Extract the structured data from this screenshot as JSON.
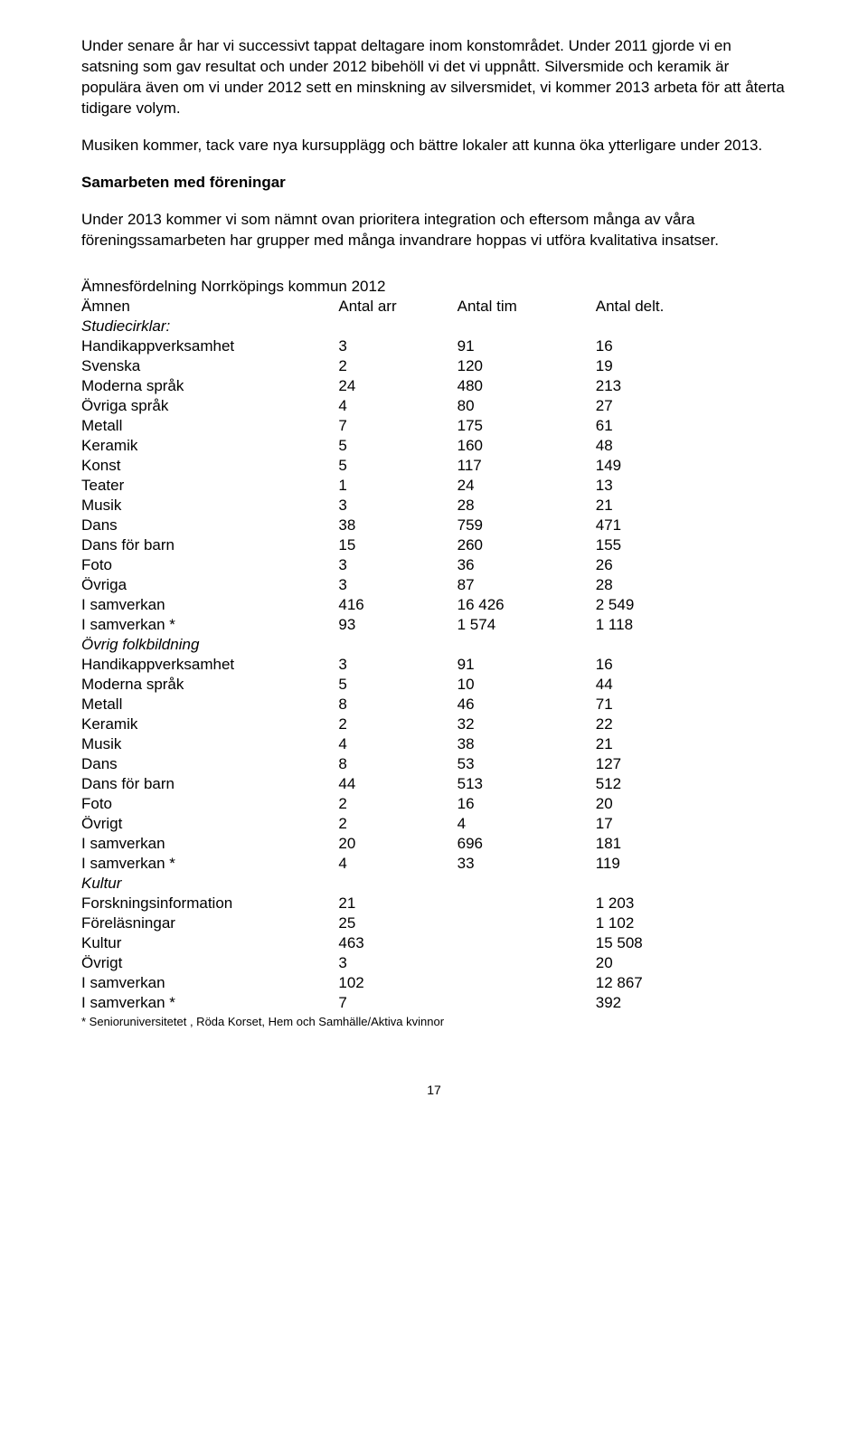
{
  "paragraphs": {
    "p1": "Under senare år har vi successivt tappat deltagare inom konstområdet. Under 2011 gjorde vi en satsning som gav resultat och under 2012 bibehöll vi det vi uppnått. Silversmide och keramik är populära även om vi under 2012 sett en minskning av silversmidet, vi kommer 2013 arbeta för att återta tidigare volym.",
    "p2": "Musiken kommer, tack vare nya kursupplägg och bättre lokaler att kunna öka ytterligare under 2013.",
    "h1": "Samarbeten med föreningar",
    "p3": "Under 2013 kommer vi som nämnt ovan prioritera integration och eftersom många av våra föreningssamarbeten har grupper med många invandrare hoppas vi utföra kvalitativa insatser."
  },
  "table": {
    "title": "Ämnesfördelning  Norrköpings kommun 2012",
    "header": {
      "c0": "Ämnen",
      "c1": "Antal arr",
      "c2": "Antal tim",
      "c3": "Antal delt."
    },
    "rows": [
      {
        "label": "Studiecirklar:",
        "arr": "",
        "tim": "",
        "delt": "",
        "italic": true
      },
      {
        "label": "Handikappverksamhet",
        "arr": "3",
        "tim": "91",
        "delt": "16"
      },
      {
        "label": "Svenska",
        "arr": "2",
        "tim": "120",
        "delt": "19"
      },
      {
        "label": "Moderna språk",
        "arr": "24",
        "tim": "480",
        "delt": "213"
      },
      {
        "label": "Övriga språk",
        "arr": "4",
        "tim": "80",
        "delt": "27"
      },
      {
        "label": "Metall",
        "arr": "7",
        "tim": "175",
        "delt": "61"
      },
      {
        "label": "Keramik",
        "arr": "5",
        "tim": "160",
        "delt": "48"
      },
      {
        "label": "Konst",
        "arr": "5",
        "tim": "117",
        "delt": "149"
      },
      {
        "label": "Teater",
        "arr": "1",
        "tim": "24",
        "delt": "13"
      },
      {
        "label": "Musik",
        "arr": "3",
        "tim": "28",
        "delt": "21"
      },
      {
        "label": "Dans",
        "arr": "38",
        "tim": "759",
        "delt": "471"
      },
      {
        "label": "Dans för barn",
        "arr": "15",
        "tim": "260",
        "delt": "155"
      },
      {
        "label": "Foto",
        "arr": "3",
        "tim": "36",
        "delt": "26"
      },
      {
        "label": "Övriga",
        "arr": "3",
        "tim": "87",
        "delt": "28"
      },
      {
        "label": "I samverkan",
        "arr": "416",
        "tim": "16 426",
        "delt": "2 549"
      },
      {
        "label": "I samverkan *",
        "arr": "93",
        "tim": "1 574",
        "delt": "1 118"
      },
      {
        "label": "Övrig folkbildning",
        "arr": "",
        "tim": "",
        "delt": "",
        "italic": true
      },
      {
        "label": "Handikappverksamhet",
        "arr": "3",
        "tim": "91",
        "delt": "16"
      },
      {
        "label": "Moderna språk",
        "arr": "5",
        "tim": "10",
        "delt": "44"
      },
      {
        "label": "Metall",
        "arr": "8",
        "tim": "46",
        "delt": "71"
      },
      {
        "label": "Keramik",
        "arr": "2",
        "tim": "32",
        "delt": "22"
      },
      {
        "label": "Musik",
        "arr": "4",
        "tim": "38",
        "delt": "21"
      },
      {
        "label": "Dans",
        "arr": "8",
        "tim": "53",
        "delt": "127"
      },
      {
        "label": "Dans för barn",
        "arr": "44",
        "tim": "513",
        "delt": "512"
      },
      {
        "label": "Foto",
        "arr": "2",
        "tim": "16",
        "delt": "20"
      },
      {
        "label": "Övrigt",
        "arr": "2",
        "tim": "4",
        "delt": "17"
      },
      {
        "label": "I samverkan",
        "arr": "20",
        "tim": "696",
        "delt": "181"
      },
      {
        "label": "I samverkan *",
        "arr": "4",
        "tim": "33",
        "delt": "119"
      },
      {
        "label": "Kultur",
        "arr": "",
        "tim": "",
        "delt": "",
        "italic": true
      },
      {
        "label": "Forskningsinformation",
        "arr": "21",
        "tim": "",
        "delt": "1 203"
      },
      {
        "label": "Föreläsningar",
        "arr": "25",
        "tim": "",
        "delt": "1 102"
      },
      {
        "label": "Kultur",
        "arr": "463",
        "tim": "",
        "delt": "15 508"
      },
      {
        "label": "Övrigt",
        "arr": "3",
        "tim": "",
        "delt": "20"
      },
      {
        "label": "I samverkan",
        "arr": "102",
        "tim": "",
        "delt": "12 867"
      },
      {
        "label": "I samverkan *",
        "arr": "7",
        "tim": "",
        "delt": "392"
      }
    ],
    "footnote": "* Senioruniversitetet , Röda Korset, Hem och Samhälle/Aktiva kvinnor"
  },
  "pageNumber": "17"
}
